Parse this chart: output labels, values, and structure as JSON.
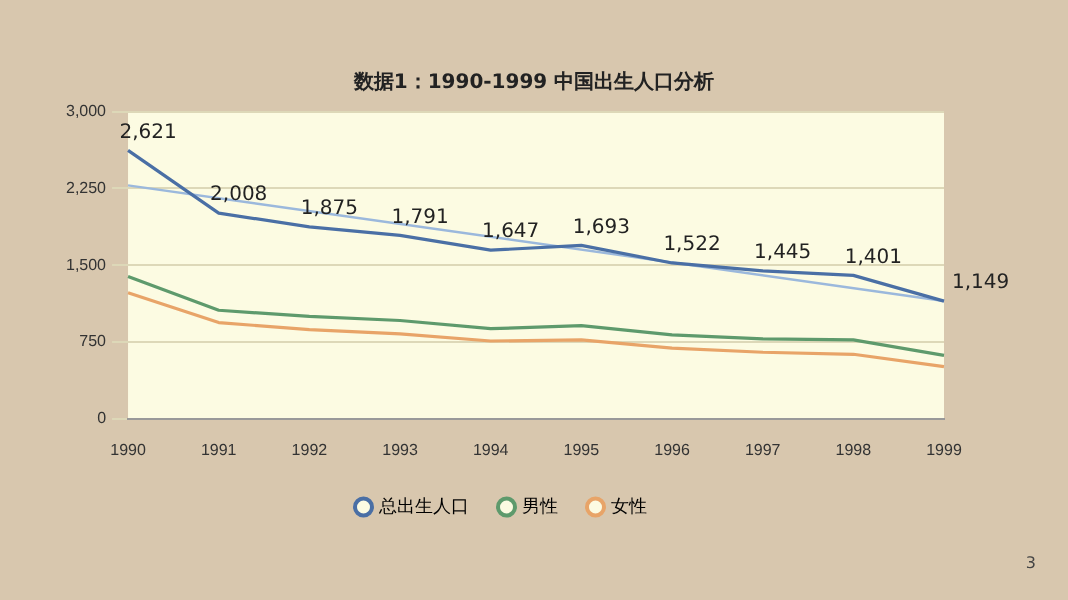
{
  "chart_data": {
    "type": "line",
    "title": "数据1：1990-1999 中国出生人口分析",
    "categories": [
      "1990",
      "1991",
      "1992",
      "1993",
      "1994",
      "1995",
      "1996",
      "1997",
      "1998",
      "1999"
    ],
    "series": [
      {
        "name": "总出生人口",
        "color": "#4a6fa5",
        "values": [
          2621,
          2008,
          1875,
          1791,
          1647,
          1693,
          1522,
          1445,
          1401,
          1149
        ],
        "value_labels": [
          "2,621",
          "2,008",
          "1,875",
          "1,791",
          "1,647",
          "1,693",
          "1,522",
          "1,445",
          "1,401",
          "1,149"
        ]
      },
      {
        "name": "男性",
        "color": "#5e9a6c",
        "values": [
          1390,
          1060,
          1000,
          960,
          880,
          910,
          820,
          780,
          770,
          620
        ]
      },
      {
        "name": "女性",
        "color": "#e8a468",
        "values": [
          1230,
          940,
          870,
          830,
          760,
          770,
          690,
          650,
          630,
          510
        ]
      },
      {
        "type": "line",
        "color": "#9bb8dc",
        "values": [
          2280,
          null,
          null,
          null,
          null,
          null,
          null,
          null,
          null,
          1150
        ]
      }
    ],
    "ylim": [
      0,
      3000
    ],
    "yticks": [
      {
        "value": 0,
        "label": "0"
      },
      {
        "value": 750,
        "label": "750"
      },
      {
        "value": 1500,
        "label": "1,500"
      },
      {
        "value": 2250,
        "label": "2,250"
      },
      {
        "value": 3000,
        "label": "3,000"
      }
    ],
    "grid": "y",
    "legend": "bottom",
    "marker": "none",
    "line_style": "solid",
    "annotations": [
      "3"
    ]
  }
}
